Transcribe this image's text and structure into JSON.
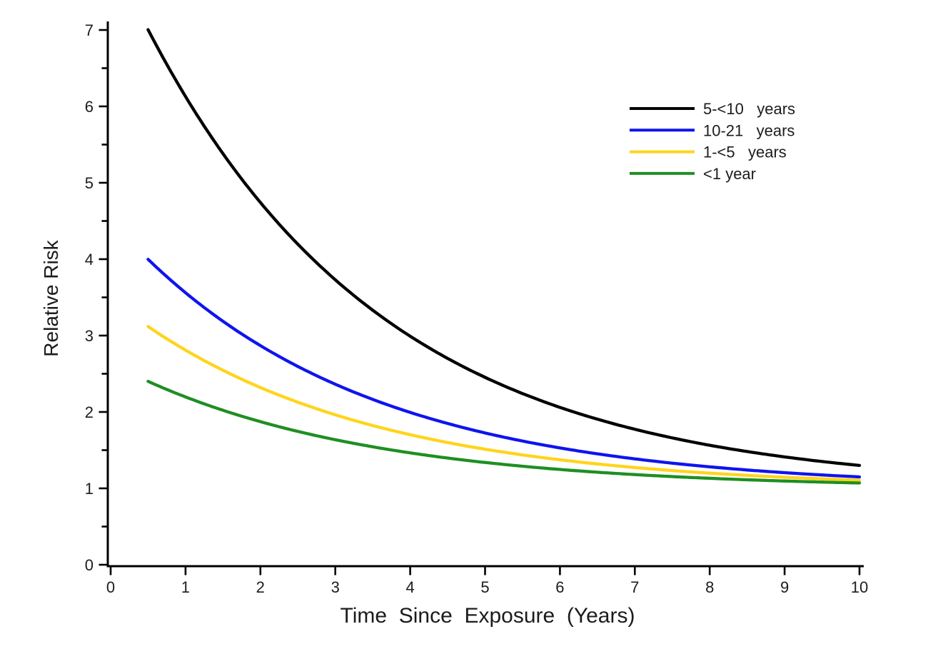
{
  "page": {
    "background": "#ffffff",
    "text_color": "#1c1c1c"
  },
  "chart_data": {
    "type": "line",
    "title": "",
    "xlabel": "Time  Since  Exposure  (Years)",
    "ylabel": "Relative Risk",
    "xlim": [
      0,
      10
    ],
    "ylim": [
      0,
      7
    ],
    "x_ticks": [
      0,
      1,
      2,
      3,
      4,
      5,
      6,
      7,
      8,
      9,
      10
    ],
    "y_ticks": [
      0,
      1,
      2,
      3,
      4,
      5,
      6,
      7
    ],
    "y_minor_ticks": [
      0.5,
      1.5,
      2.5,
      3.5,
      4.5,
      5.5,
      6.5
    ],
    "grid": false,
    "legend_position": "top-right-inside",
    "x_start": 0.5,
    "x_points": [
      0.5,
      1,
      2,
      3,
      4,
      5,
      6,
      7,
      8,
      9,
      10
    ],
    "series": [
      {
        "name": "5-<10   years",
        "color": "#000000",
        "model": {
          "baseline": 1,
          "amplitude": 7.03,
          "decay": 0.3153
        },
        "values": [
          6.98,
          6.13,
          4.74,
          3.73,
          2.99,
          2.45,
          2.06,
          1.77,
          1.56,
          1.41,
          1.3
        ]
      },
      {
        "name": "10-21   years",
        "color": "#0f14ee",
        "model": {
          "baseline": 1,
          "amplitude": 3.51,
          "decay": 0.3153
        },
        "values": [
          4.0,
          3.56,
          2.87,
          2.36,
          1.99,
          1.73,
          1.53,
          1.39,
          1.28,
          1.21,
          1.15
        ]
      },
      {
        "name": "1-<5   years",
        "color": "#ffd41c",
        "model": {
          "baseline": 1,
          "amplitude": 2.48,
          "decay": 0.3153
        },
        "values": [
          3.12,
          2.81,
          2.32,
          1.96,
          1.7,
          1.51,
          1.37,
          1.27,
          1.2,
          1.15,
          1.11
        ]
      },
      {
        "name": "<1 year",
        "color": "#1e8f22",
        "model": {
          "baseline": 1,
          "amplitude": 1.64,
          "decay": 0.3153
        },
        "values": [
          2.4,
          2.2,
          1.87,
          1.64,
          1.46,
          1.34,
          1.25,
          1.18,
          1.13,
          1.1,
          1.07
        ]
      }
    ]
  }
}
